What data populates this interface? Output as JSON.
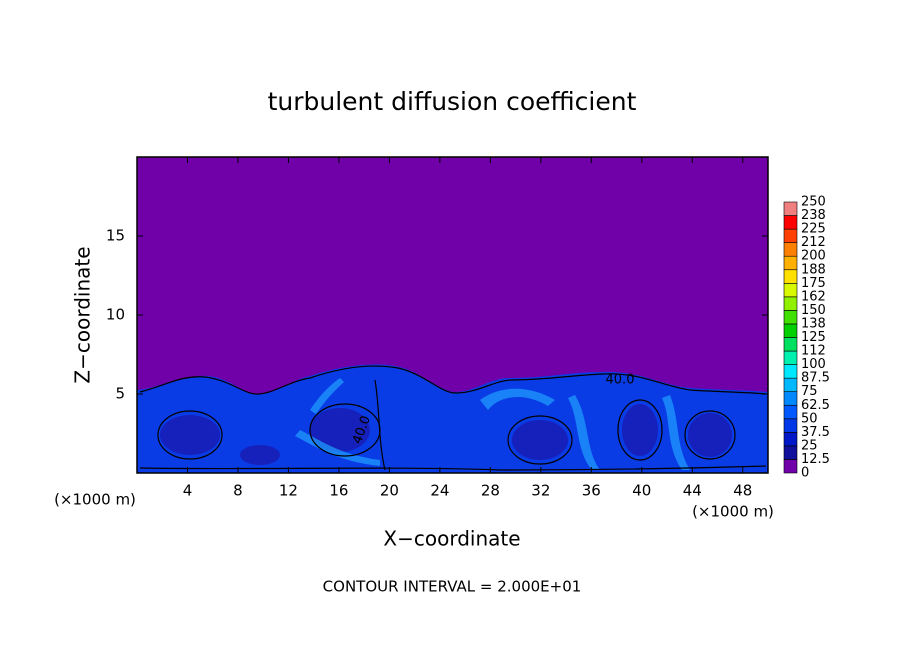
{
  "chart_data": {
    "type": "contour",
    "title": "turbulent diffusion coefficient",
    "x_label": "X−coordinate",
    "y_label": "Z−coordinate",
    "x_unit": "(×1000 m)",
    "x_unit_right": "(×1000 m)",
    "footer": "CONTOUR INTERVAL = 2.000E+01",
    "contour_labels": [
      "40.0",
      "40.0"
    ],
    "xlim": [
      0,
      50
    ],
    "ylim": [
      0,
      20
    ],
    "xticks": [
      4,
      8,
      12,
      16,
      20,
      24,
      28,
      32,
      36,
      40,
      44,
      48
    ],
    "yticks": [
      5,
      10,
      15
    ],
    "colorbar": {
      "levels": [
        0,
        12.5,
        25,
        37.5,
        50,
        62.5,
        75,
        87.5,
        100,
        112,
        125,
        138,
        150,
        162,
        175,
        188,
        200,
        212,
        225,
        238,
        250
      ],
      "colors": [
        "#7000a8",
        "#10109c",
        "#0018c8",
        "#0038e8",
        "#0058ff",
        "#0088ff",
        "#00b8ff",
        "#00e8ff",
        "#00f0b0",
        "#00e060",
        "#00d000",
        "#40e000",
        "#90f000",
        "#d8f800",
        "#ffe000",
        "#ffb000",
        "#ff8000",
        "#ff4000",
        "#ff0000",
        "#f08080"
      ]
    }
  }
}
